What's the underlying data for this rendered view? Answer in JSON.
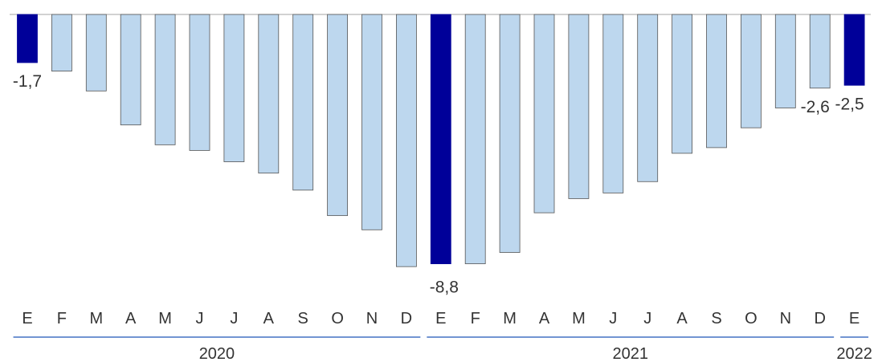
{
  "chart_data": {
    "type": "bar",
    "title": "",
    "xlabel": "",
    "ylabel": "",
    "ylim": [
      -8.8,
      0
    ],
    "grid": false,
    "legend": "none",
    "categories": [
      "E",
      "F",
      "M",
      "A",
      "M",
      "J",
      "J",
      "A",
      "S",
      "O",
      "N",
      "D",
      "E",
      "F",
      "M",
      "A",
      "M",
      "J",
      "J",
      "A",
      "S",
      "O",
      "N",
      "D",
      "E"
    ],
    "years": [
      {
        "label": "2020",
        "start": 0,
        "end": 11
      },
      {
        "label": "2021",
        "start": 12,
        "end": 23
      },
      {
        "label": "2022",
        "start": 24,
        "end": 24
      }
    ],
    "series": [
      {
        "values": [
          -1.7,
          -2.0,
          -2.7,
          -3.9,
          -4.6,
          -4.8,
          -5.2,
          -5.6,
          -6.2,
          -7.1,
          -7.6,
          -8.9,
          -8.8,
          -8.8,
          -8.4,
          -7.0,
          -6.5,
          -6.3,
          -5.9,
          -4.9,
          -4.7,
          -4.0,
          -3.3,
          -2.6,
          -2.5
        ],
        "highlight": [
          true,
          false,
          false,
          false,
          false,
          false,
          false,
          false,
          false,
          false,
          false,
          false,
          true,
          false,
          false,
          false,
          false,
          false,
          false,
          false,
          false,
          false,
          false,
          false,
          true
        ]
      }
    ],
    "data_labels": [
      {
        "index": 0,
        "text": "-1,7"
      },
      {
        "index": 12,
        "text": "-8,8"
      },
      {
        "index": 23,
        "text": "-2,6"
      },
      {
        "index": 24,
        "text": "-2,5"
      }
    ],
    "colors": {
      "bar": "#bdd7ee",
      "highlight": "#000099",
      "bar_stroke": "#555555",
      "zero_line": "#a6a6a6",
      "year_line": "#4472c4"
    }
  }
}
